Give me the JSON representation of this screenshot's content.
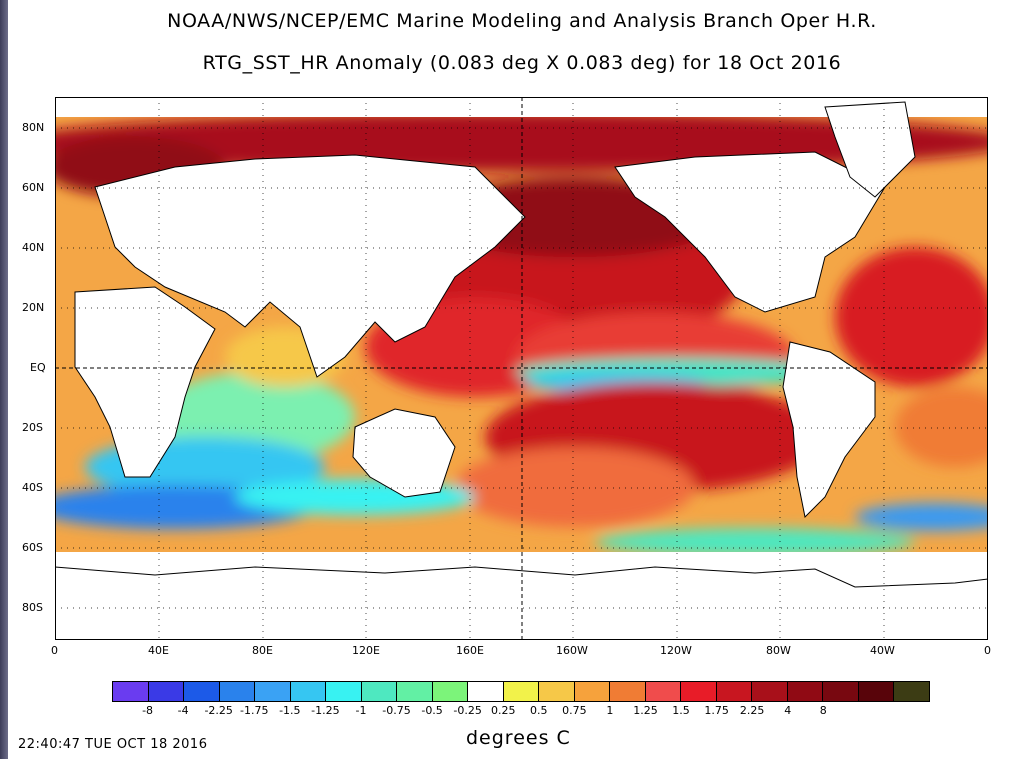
{
  "title_line1": "NOAA/NWS/NCEP/EMC Marine Modeling and Analysis Branch Oper H.R.",
  "title_line2": "RTG_SST_HR Anomaly (0.083 deg X 0.083 deg) for 18 Oct 2016",
  "lat_labels": [
    "80N",
    "60N",
    "40N",
    "20N",
    "EQ",
    "20S",
    "40S",
    "60S",
    "80S"
  ],
  "lon_labels": [
    "0",
    "40E",
    "80E",
    "120E",
    "160E",
    "160W",
    "120W",
    "80W",
    "40W",
    "0"
  ],
  "colorbar": {
    "colors": [
      "#6a3cf0",
      "#3a3ae6",
      "#1c5ae8",
      "#2a82ec",
      "#3aa2f4",
      "#36c6f2",
      "#38f2f2",
      "#4ee8c0",
      "#62f0a4",
      "#7cf47a",
      "#ffffff",
      "#f2f24a",
      "#f6c848",
      "#f6a23c",
      "#f07c34",
      "#f04c4c",
      "#e81c28",
      "#c81620",
      "#a8101a",
      "#900a14",
      "#780810",
      "#58040a",
      "#3c3c14"
    ],
    "tick_labels": [
      "-8",
      "-4",
      "-2.25",
      "-1.75",
      "-1.5",
      "-1.25",
      "-1",
      "-0.75",
      "-0.5",
      "-0.25",
      "0.25",
      "0.5",
      "0.75",
      "1",
      "1.25",
      "1.5",
      "1.75",
      "2.25",
      "4",
      "8"
    ]
  },
  "units_label": "degrees C",
  "timestamp": "22:40:47  TUE OCT 18 2016"
}
